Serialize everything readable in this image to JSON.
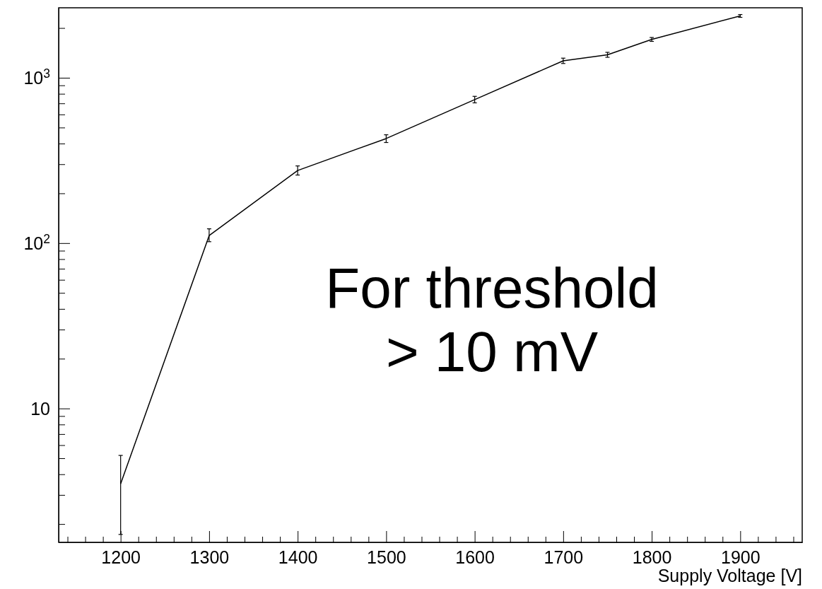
{
  "chart_data": {
    "type": "line",
    "xlabel": "Supply Voltage [V]",
    "log": "y",
    "marker": "none",
    "line_style": "solid",
    "grid": false,
    "x": [
      1200,
      1300,
      1400,
      1500,
      1600,
      1700,
      1750,
      1800,
      1900
    ],
    "series": [
      {
        "color": "#000000",
        "values": [
          3.5,
          111,
          275,
          429,
          738,
          1267,
          1377,
          1706,
          2366
        ],
        "errors": [
          [
            1.73,
            5.2
          ],
          [
            102,
            122
          ],
          [
            258,
            293
          ],
          [
            406,
            452
          ],
          [
            705,
            772
          ],
          [
            1220,
            1314
          ],
          [
            1330,
            1425
          ],
          [
            1660,
            1752
          ],
          [
            2320,
            2412
          ]
        ]
      }
    ],
    "xlim": [
      1130,
      1970
    ],
    "xticks": [
      {
        "value": 1140,
        "label": null
      },
      {
        "value": 1160,
        "label": null
      },
      {
        "value": 1180,
        "label": null
      },
      1200,
      {
        "value": 1220,
        "label": null
      },
      {
        "value": 1240,
        "label": null
      },
      {
        "value": 1260,
        "label": null
      },
      {
        "value": 1280,
        "label": null
      },
      1300,
      {
        "value": 1320,
        "label": null
      },
      {
        "value": 1340,
        "label": null
      },
      {
        "value": 1360,
        "label": null
      },
      {
        "value": 1380,
        "label": null
      },
      1400,
      {
        "value": 1420,
        "label": null
      },
      {
        "value": 1440,
        "label": null
      },
      {
        "value": 1460,
        "label": null
      },
      {
        "value": 1480,
        "label": null
      },
      1500,
      {
        "value": 1520,
        "label": null
      },
      {
        "value": 1540,
        "label": null
      },
      {
        "value": 1560,
        "label": null
      },
      {
        "value": 1580,
        "label": null
      },
      1600,
      {
        "value": 1620,
        "label": null
      },
      {
        "value": 1640,
        "label": null
      },
      {
        "value": 1660,
        "label": null
      },
      {
        "value": 1680,
        "label": null
      },
      1700,
      {
        "value": 1720,
        "label": null
      },
      {
        "value": 1740,
        "label": null
      },
      {
        "value": 1760,
        "label": null
      },
      {
        "value": 1780,
        "label": null
      },
      1800,
      {
        "value": 1820,
        "label": null
      },
      {
        "value": 1840,
        "label": null
      },
      {
        "value": 1860,
        "label": null
      },
      {
        "value": 1880,
        "label": null
      },
      1900,
      {
        "value": 1920,
        "label": null
      },
      {
        "value": 1940,
        "label": null
      },
      {
        "value": 1960,
        "label": null
      }
    ],
    "ylim": [
      1.55,
      2650
    ],
    "yticks": [
      {
        "value": 2,
        "label": null
      },
      {
        "value": 3,
        "label": null
      },
      {
        "value": 4,
        "label": null
      },
      {
        "value": 5,
        "label": null
      },
      {
        "value": 6,
        "label": null
      },
      {
        "value": 7,
        "label": null
      },
      {
        "value": 8,
        "label": null
      },
      {
        "value": 9,
        "label": null
      },
      10,
      {
        "value": 20,
        "label": null
      },
      {
        "value": 30,
        "label": null
      },
      {
        "value": 40,
        "label": null
      },
      {
        "value": 50,
        "label": null
      },
      {
        "value": 60,
        "label": null
      },
      {
        "value": 70,
        "label": null
      },
      {
        "value": 80,
        "label": null
      },
      {
        "value": 90,
        "label": null
      },
      {
        "value": 100,
        "label": "10$^{2}$"
      },
      {
        "value": 200,
        "label": null
      },
      {
        "value": 300,
        "label": null
      },
      {
        "value": 400,
        "label": null
      },
      {
        "value": 500,
        "label": null
      },
      {
        "value": 600,
        "label": null
      },
      {
        "value": 700,
        "label": null
      },
      {
        "value": 800,
        "label": null
      },
      {
        "value": 900,
        "label": null
      },
      {
        "value": 1000,
        "label": "10$^{3}$"
      },
      {
        "value": 2000,
        "label": null
      }
    ],
    "annotations": [
      "For threshold\n> 10 mV"
    ]
  }
}
